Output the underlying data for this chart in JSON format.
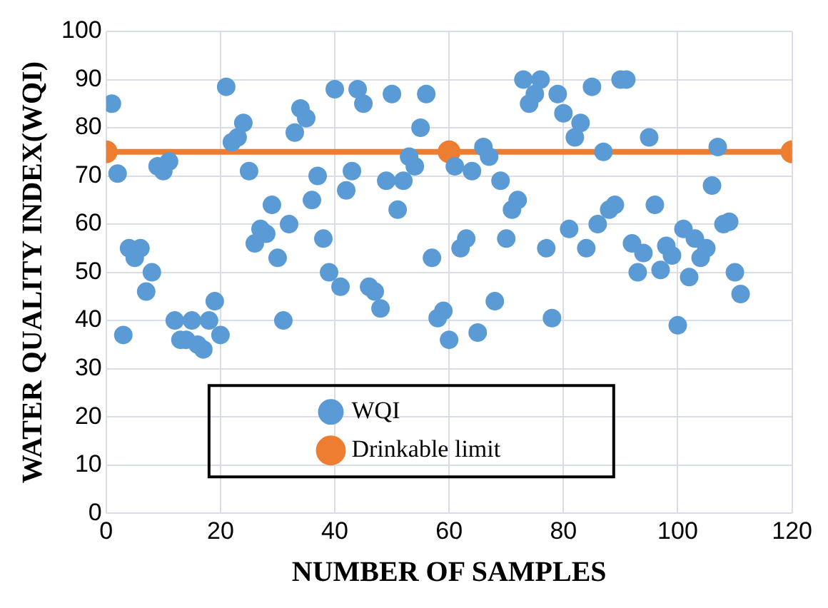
{
  "chart_data": {
    "type": "scatter",
    "xlabel": "NUMBER OF SAMPLES",
    "ylabel": "WATER QUALITY INDEX(WQI)",
    "xlim": [
      0,
      120
    ],
    "xticks": [
      0,
      20,
      40,
      60,
      80,
      100,
      120
    ],
    "ylim": [
      0,
      100
    ],
    "yticks": [
      0,
      10,
      20,
      30,
      40,
      50,
      60,
      70,
      80,
      90,
      100
    ],
    "grid": true,
    "legend": "bottom",
    "marker": "circle",
    "series": [
      {
        "name": "WQI",
        "color": "#5b9bd5",
        "x": [
          1,
          2,
          3,
          4,
          5,
          6,
          7,
          8,
          9,
          10,
          11,
          12,
          13,
          14,
          15,
          16,
          17,
          18,
          19,
          20,
          21,
          22,
          23,
          24,
          25,
          26,
          27,
          28,
          29,
          30,
          31,
          32,
          33,
          34,
          35,
          36,
          37,
          38,
          39,
          40,
          41,
          42,
          43,
          44,
          45,
          46,
          47,
          48,
          49,
          50,
          51,
          52,
          53,
          54,
          55,
          56,
          57,
          58,
          59,
          60,
          61,
          62,
          63,
          64,
          65,
          66,
          67,
          68,
          69,
          70,
          71,
          72,
          73,
          74,
          75,
          76,
          77,
          78,
          79,
          80,
          81,
          82,
          83,
          84,
          85,
          86,
          87,
          88,
          89,
          90,
          91,
          92,
          93,
          94,
          95,
          96,
          97,
          98,
          99,
          100,
          101,
          102,
          103,
          104,
          105,
          106,
          107,
          108,
          109,
          110,
          111
        ],
        "values": [
          85,
          70.5,
          37,
          55,
          53,
          55,
          46,
          50,
          72,
          71,
          73,
          40,
          36,
          36,
          40,
          35,
          34,
          40,
          44,
          37,
          88.5,
          77,
          78,
          81,
          71,
          56,
          59,
          58,
          64,
          53,
          40,
          60,
          79,
          84,
          82,
          65,
          70,
          57,
          50,
          88,
          47,
          67,
          71,
          88,
          85,
          47,
          46,
          42.5,
          69,
          87,
          63,
          69,
          74,
          72,
          80,
          87,
          53,
          40.5,
          42,
          36,
          72,
          55,
          57,
          71,
          37.5,
          76,
          74,
          44,
          69,
          57,
          63,
          65,
          90,
          85,
          87,
          90,
          55,
          40.5,
          87,
          83,
          59,
          78,
          81,
          55,
          88.5,
          60,
          75,
          63,
          64,
          90,
          90,
          56,
          50,
          54,
          78,
          64,
          50.5,
          55.5,
          53.5,
          39,
          59,
          49,
          57,
          53,
          55,
          68,
          76,
          60,
          60.5,
          50,
          45.5
        ]
      },
      {
        "name": "Drinkable limit",
        "type": "line",
        "color": "#ed7d31",
        "x": [
          0,
          60,
          120
        ],
        "values": [
          75,
          75,
          75
        ]
      }
    ]
  }
}
